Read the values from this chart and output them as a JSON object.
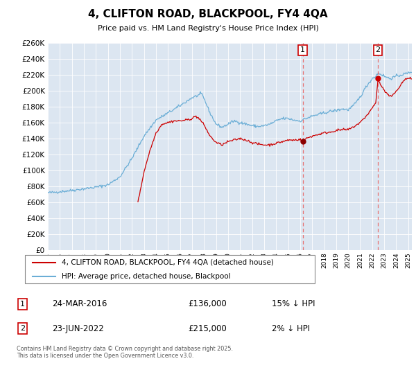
{
  "title": "4, CLIFTON ROAD, BLACKPOOL, FY4 4QA",
  "subtitle": "Price paid vs. HM Land Registry's House Price Index (HPI)",
  "ylim": [
    0,
    260000
  ],
  "yticks": [
    0,
    20000,
    40000,
    60000,
    80000,
    100000,
    120000,
    140000,
    160000,
    180000,
    200000,
    220000,
    240000,
    260000
  ],
  "xlim_start": 1995.0,
  "xlim_end": 2025.3,
  "background_color": "#ffffff",
  "chart_bg_color": "#dce6f1",
  "grid_color": "#ffffff",
  "hpi_color": "#6baed6",
  "price_color": "#cc0000",
  "point1_x": 2016.22,
  "point1_y": 136000,
  "point1_label": "1",
  "point1_date": "24-MAR-2016",
  "point1_price": "£136,000",
  "point1_hpi": "15% ↓ HPI",
  "point2_x": 2022.48,
  "point2_y": 215000,
  "point2_label": "2",
  "point2_date": "23-JUN-2022",
  "point2_price": "£215,000",
  "point2_hpi": "2% ↓ HPI",
  "legend_line1": "4, CLIFTON ROAD, BLACKPOOL, FY4 4QA (detached house)",
  "legend_line2": "HPI: Average price, detached house, Blackpool",
  "footer": "Contains HM Land Registry data © Crown copyright and database right 2025.\nThis data is licensed under the Open Government Licence v3.0.",
  "xtick_years": [
    1995,
    1996,
    1997,
    1998,
    1999,
    2000,
    2001,
    2002,
    2003,
    2004,
    2005,
    2006,
    2007,
    2008,
    2009,
    2010,
    2011,
    2012,
    2013,
    2014,
    2015,
    2016,
    2017,
    2018,
    2019,
    2020,
    2021,
    2022,
    2023,
    2024,
    2025
  ]
}
